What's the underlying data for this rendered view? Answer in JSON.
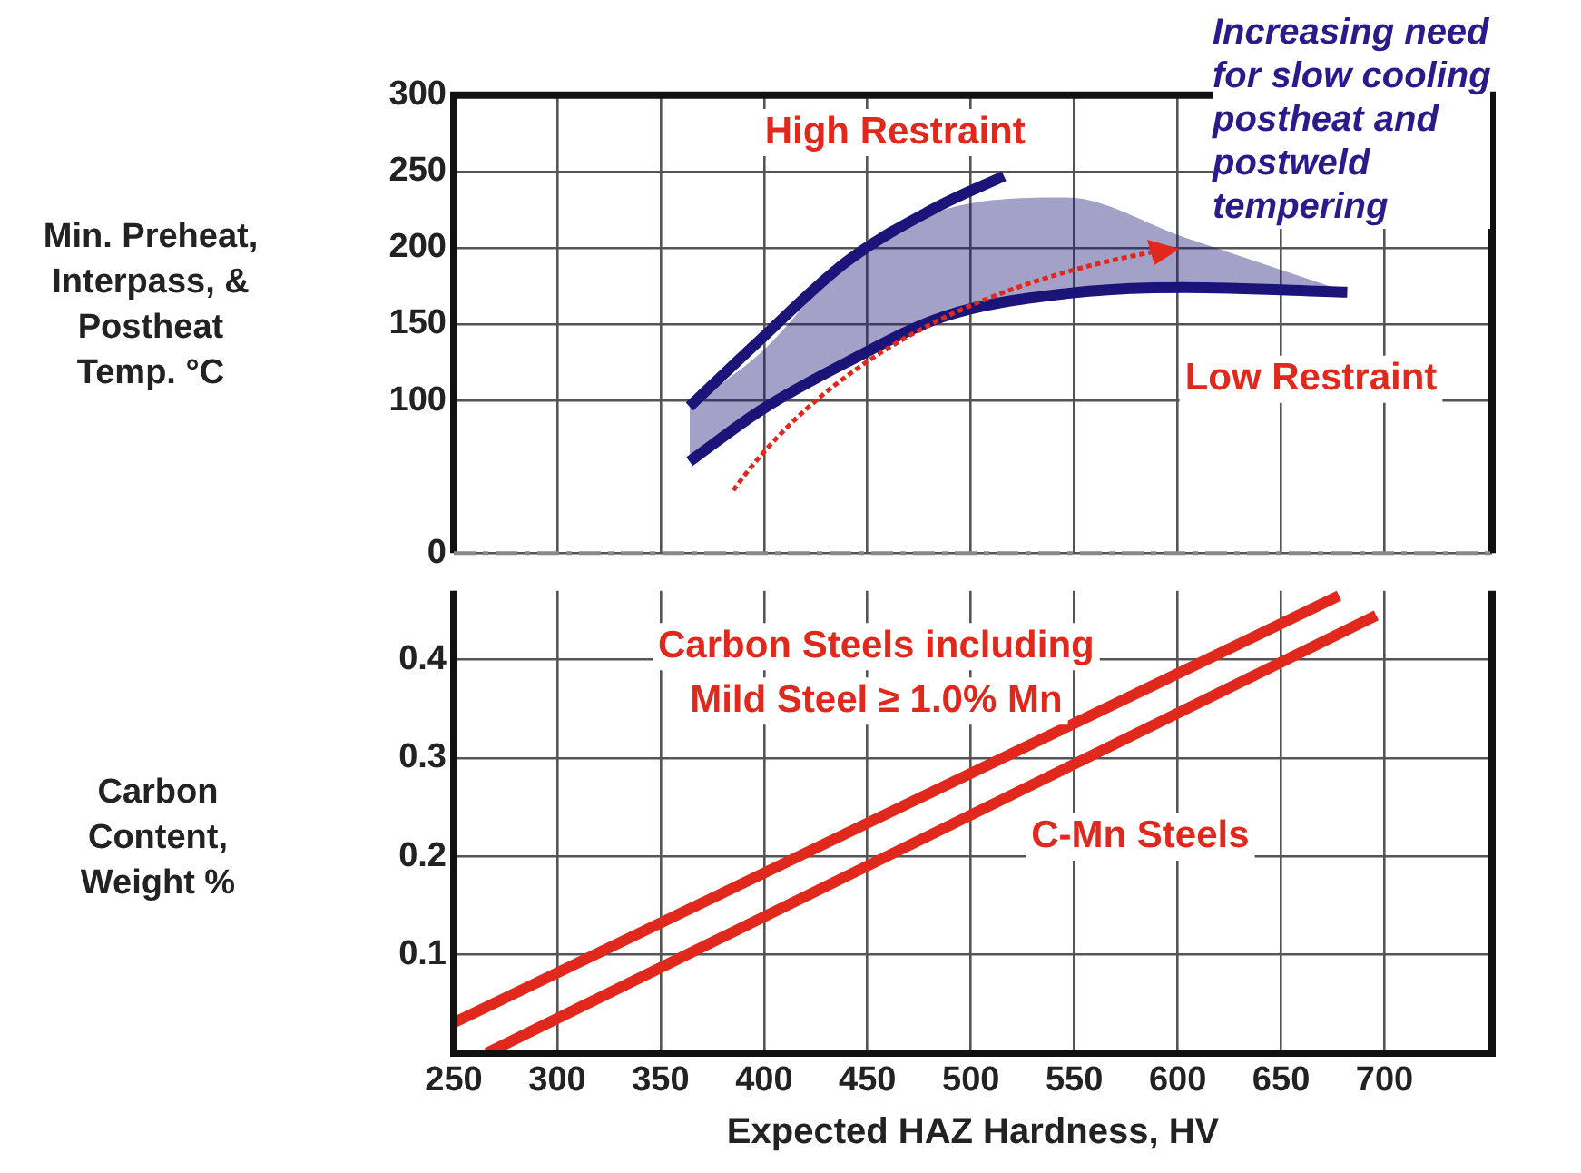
{
  "chart_data": [
    {
      "type": "line",
      "ylabel": "Min. Preheat,\nInterpass, &\nPostheat\nTemp. °C",
      "annotations": [
        "Increasing need\nfor slow cooling\npostheat and\npostweld\ntempering"
      ],
      "series": [
        {
          "name": "High Restraint",
          "color": "#1c1479",
          "x": [
            364,
            396,
            440,
            484,
            516
          ],
          "values": [
            96,
            137,
            191,
            227,
            247
          ]
        },
        {
          "name": "Low Restraint",
          "color": "#1c1479",
          "x": [
            364,
            399,
            440,
            487,
            546,
            603,
            682
          ],
          "values": [
            60,
            94,
            125,
            155,
            170,
            174,
            171
          ],
          "lower": [
            60,
            94,
            125,
            155,
            170,
            174,
            171
          ],
          "upper": [
            96,
            132,
            191,
            225,
            233,
            207,
            171
          ]
        }
      ],
      "xlim": [
        250,
        752
      ],
      "xticks": [
        250,
        300,
        350,
        400,
        450,
        500,
        550,
        600,
        650,
        700
      ],
      "ylim": [
        0,
        300
      ],
      "yticks": [
        0,
        100,
        150,
        200,
        250,
        300
      ],
      "tick_labels": "y",
      "grid": true,
      "legend": false,
      "marker": "none",
      "line_style": "solid"
    },
    {
      "type": "line",
      "xlabel": "Expected HAZ Hardness, HV",
      "ylabel": "Carbon\nContent,\nWeight %",
      "series": [
        {
          "name": "Carbon Steels including\nMild Steel ≥ 1.0% Mn",
          "color": "#e0281c",
          "x": [
            250,
            678
          ],
          "values": [
            0.031,
            0.465
          ]
        },
        {
          "name": "C-Mn Steels",
          "color": "#e0281c",
          "x": [
            266,
            696
          ],
          "values": [
            0,
            0.445
          ]
        }
      ],
      "xlim": [
        250,
        752
      ],
      "xticks": [
        250,
        300,
        350,
        400,
        450,
        500,
        550,
        600,
        650,
        700
      ],
      "ylim": [
        0,
        0.47
      ],
      "yticks": [
        0.1,
        0.2,
        0.3,
        0.4
      ],
      "grid": true,
      "legend": false,
      "marker": "none",
      "line_style": "solid"
    }
  ]
}
